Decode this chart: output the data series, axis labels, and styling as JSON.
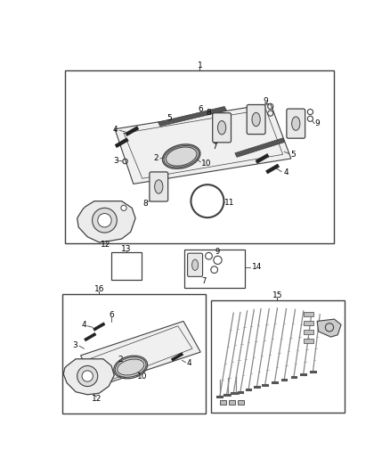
{
  "bg_color": "#ffffff",
  "line_color": "#404040",
  "fig_width": 4.38,
  "fig_height": 5.33,
  "dpi": 100,
  "label_fontsize": 6.5
}
